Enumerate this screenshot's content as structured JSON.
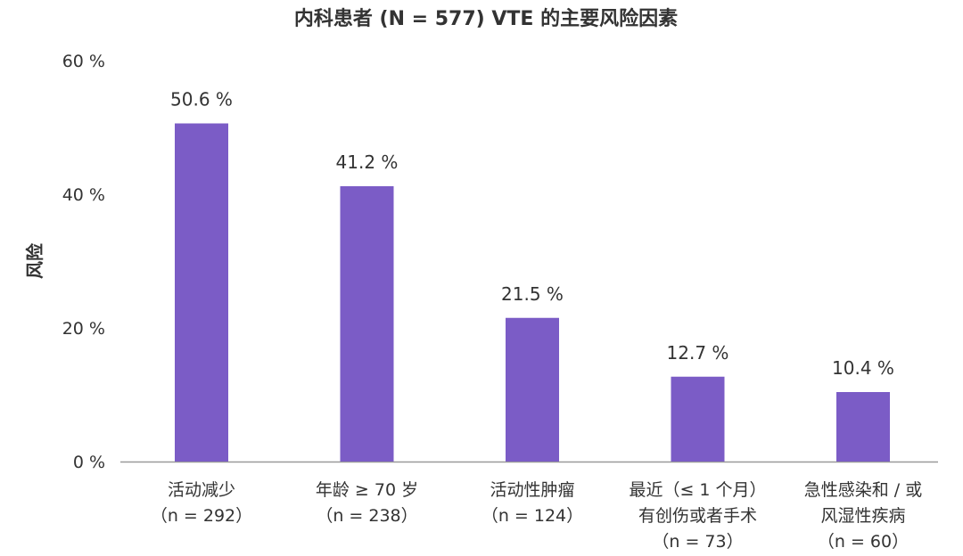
{
  "chart_data": {
    "type": "bar",
    "title": "内科患者 (N = 577) VTE 的主要风险因素",
    "ylabel": "风险",
    "xlabel": "",
    "ylim": [
      0,
      60
    ],
    "yticks": [
      "0 %",
      "20 %",
      "40 %",
      "60 %"
    ],
    "ytick_values": [
      0,
      20,
      40,
      60
    ],
    "grid": false,
    "bar_color": "#7B5CC6",
    "categories": [
      [
        "活动减少",
        "（n = 292）"
      ],
      [
        "年龄 ≥ 70 岁",
        "（n = 238）"
      ],
      [
        "活动性肿瘤",
        "（n = 124）"
      ],
      [
        "最近（≤ 1 个月）",
        "有创伤或者手术",
        "（n = 73）"
      ],
      [
        "急性感染和 / 或",
        "风湿性疾病",
        "（n = 60）"
      ]
    ],
    "values": [
      50.6,
      41.2,
      21.5,
      12.7,
      10.4
    ],
    "data_labels": [
      "50.6 %",
      "41.2 %",
      "21.5 %",
      "12.7 %",
      "10.4 %"
    ]
  }
}
